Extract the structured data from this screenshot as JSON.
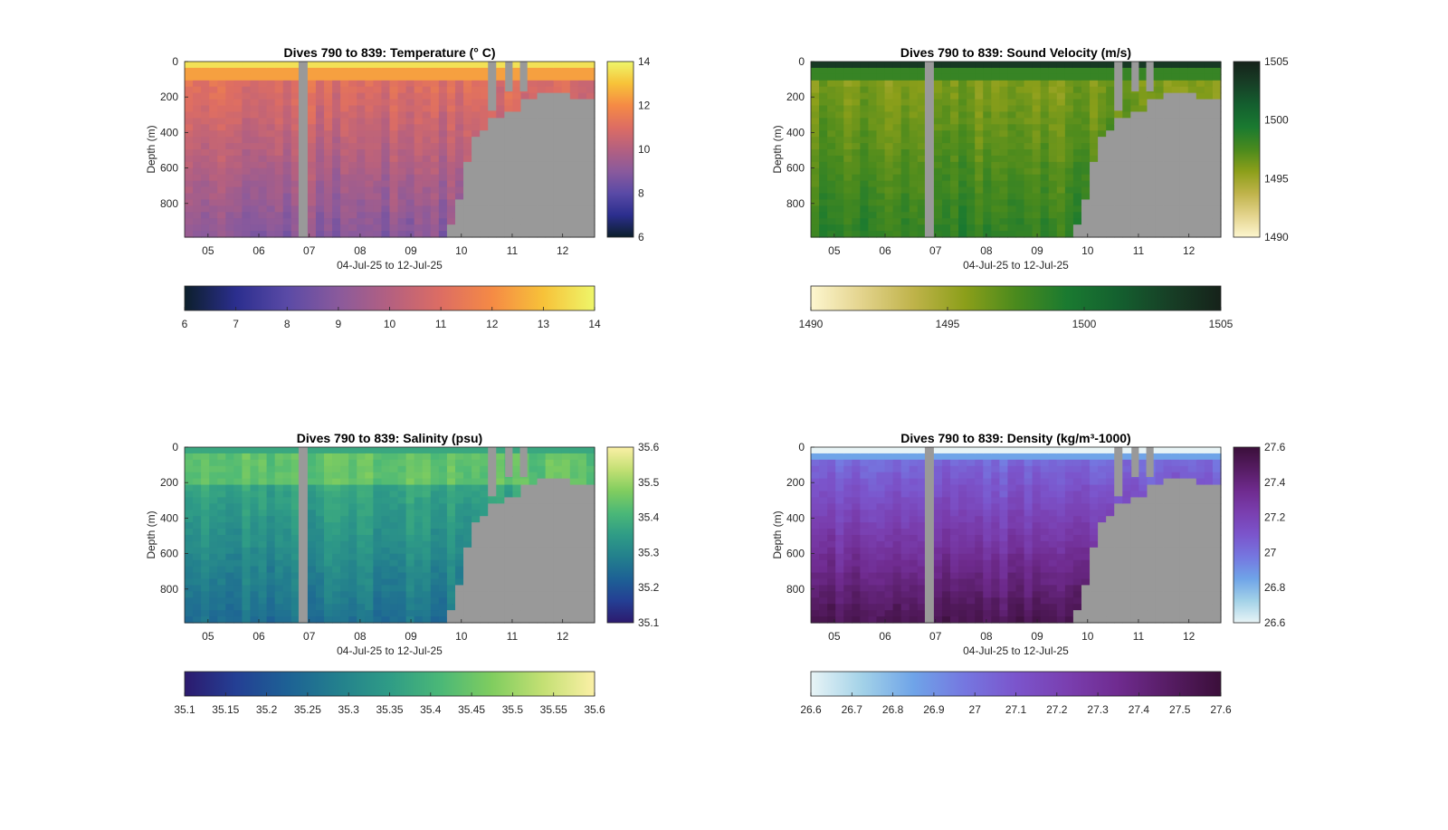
{
  "colors": {
    "background": "#ffffff",
    "nodata": "#999999",
    "axis": "#262626"
  },
  "chart_data": [
    {
      "type": "heatmap",
      "id": "temp",
      "title": "Dives 790 to 839: Temperature (° C)",
      "xlabel": "04-Jul-25 to 12-Jul-25",
      "ylabel": "Depth (m)",
      "x_ticks": [
        "05",
        "06",
        "07",
        "08",
        "09",
        "10",
        "11",
        "12"
      ],
      "y_ticks": [
        "0",
        "200",
        "400",
        "600",
        "800"
      ],
      "ylim": [
        0,
        990
      ],
      "colormap": [
        "#0c1f2b",
        "#2b2e8e",
        "#5a4aa6",
        "#8a5a9c",
        "#b46080",
        "#dd6d63",
        "#f58a45",
        "#f7c239",
        "#eef66a"
      ],
      "clim": [
        6,
        14
      ],
      "side_colorbar_ticks": [
        "14",
        "12",
        "10",
        "8",
        "6"
      ],
      "bottom_colorbar_ticks": [
        "6",
        "7",
        "8",
        "9",
        "10",
        "11",
        "12",
        "13",
        "14"
      ]
    },
    {
      "type": "heatmap",
      "id": "sv",
      "title": "Dives 790 to 839: Sound Velocity (m/s)",
      "xlabel": "04-Jul-25 to 12-Jul-25",
      "ylabel": "Depth (m)",
      "x_ticks": [
        "05",
        "06",
        "07",
        "08",
        "09",
        "10",
        "11",
        "12"
      ],
      "y_ticks": [
        "0",
        "200",
        "400",
        "600",
        "800"
      ],
      "ylim": [
        0,
        990
      ],
      "colormap": [
        "#fdf6cf",
        "#e3d38c",
        "#bfb34a",
        "#8c9f1a",
        "#4a8a1d",
        "#1a7a30",
        "#14602f",
        "#173f26",
        "#16221a"
      ],
      "clim": [
        1490,
        1505
      ],
      "side_colorbar_ticks": [
        "1505",
        "1500",
        "1495",
        "1490"
      ],
      "bottom_colorbar_ticks": [
        "1490",
        "1495",
        "1500",
        "1505"
      ]
    },
    {
      "type": "heatmap",
      "id": "sal",
      "title": "Dives 790 to 839: Salinity (psu)",
      "xlabel": "04-Jul-25 to 12-Jul-25",
      "ylabel": "Depth (m)",
      "x_ticks": [
        "05",
        "06",
        "07",
        "08",
        "09",
        "10",
        "11",
        "12"
      ],
      "y_ticks": [
        "0",
        "200",
        "400",
        "600",
        "800"
      ],
      "ylim": [
        0,
        990
      ],
      "colormap": [
        "#2c1a6e",
        "#243f94",
        "#1d6195",
        "#23808d",
        "#2f9c86",
        "#4bb877",
        "#80cd5f",
        "#c4e074",
        "#fbf0a6"
      ],
      "clim": [
        35.1,
        35.6
      ],
      "side_colorbar_ticks": [
        "35.6",
        "35.5",
        "35.4",
        "35.3",
        "35.2",
        "35.1"
      ],
      "bottom_colorbar_ticks": [
        "35.1",
        "35.15",
        "35.2",
        "35.25",
        "35.3",
        "35.35",
        "35.4",
        "35.45",
        "35.5",
        "35.55",
        "35.6"
      ]
    },
    {
      "type": "heatmap",
      "id": "dens",
      "title": "Dives 790 to 839: Density (kg/m³-1000)",
      "xlabel": "04-Jul-25 to 12-Jul-25",
      "ylabel": "Depth (m)",
      "x_ticks": [
        "05",
        "06",
        "07",
        "08",
        "09",
        "10",
        "11",
        "12"
      ],
      "y_ticks": [
        "0",
        "200",
        "400",
        "600",
        "800"
      ],
      "ylim": [
        0,
        990
      ],
      "colormap": [
        "#e8f4f6",
        "#a3d2e8",
        "#6fa4e8",
        "#7577e0",
        "#7b55cc",
        "#7a3fb0",
        "#6f2b8f",
        "#561c63",
        "#3b0f3a"
      ],
      "clim": [
        26.6,
        27.6
      ],
      "side_colorbar_ticks": [
        "27.6",
        "27.4",
        "27.2",
        "27",
        "26.8",
        "26.6"
      ],
      "bottom_colorbar_ticks": [
        "26.6",
        "26.7",
        "26.8",
        "26.9",
        "27",
        "27.1",
        "27.2",
        "27.3",
        "27.4",
        "27.5",
        "27.6"
      ]
    }
  ]
}
